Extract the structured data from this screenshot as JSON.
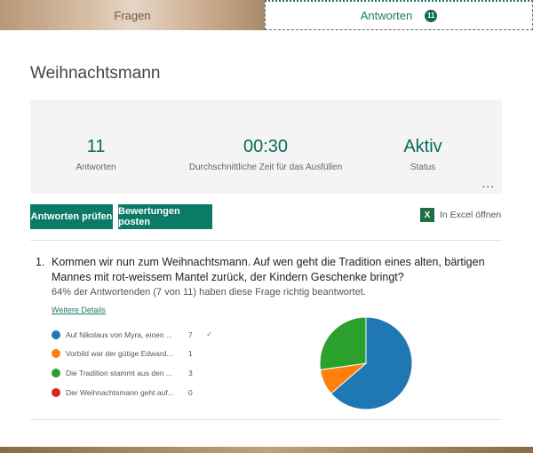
{
  "tabs": {
    "questions": "Fragen",
    "responses": "Antworten",
    "responses_count": "11"
  },
  "form_title": "Weihnachtsmann",
  "stats": [
    {
      "value": "11",
      "label": "Antworten"
    },
    {
      "value": "00:30",
      "label": "Durchschnittliche Zeit für das Ausfüllen"
    },
    {
      "value": "Aktiv",
      "label": "Status"
    }
  ],
  "more_label": "...",
  "buttons": {
    "review": "Antworten prüfen",
    "post_scores": "Bewertungen posten",
    "excel": "In Excel öffnen"
  },
  "question": {
    "number": "1.",
    "text": "Kommen wir nun zum Weihnachtsmann. Auf wen geht die Tradition eines alten, bärtigen Mannes mit rot-weissem Mantel zurück, der Kindern Geschenke bringt?",
    "summary": "64% der Antwortenden (7 von 11) haben diese Frage richtig beantwortet.",
    "details_link": "Weitere Details",
    "options": [
      {
        "label": "Auf Nikolaus von Myra, einen ...",
        "count": "7",
        "color": "#1f77b4",
        "correct": true,
        "check": "✓"
      },
      {
        "label": "Vorbild war der gütige Edward...",
        "count": "1",
        "color": "#ff7f0e",
        "correct": false
      },
      {
        "label": "Die Tradition stammt aus den ...",
        "count": "3",
        "color": "#2ca02c",
        "correct": false
      },
      {
        "label": "Der Weihnachtsmann geht auf...",
        "count": "0",
        "color": "#d62728",
        "correct": false
      }
    ]
  },
  "chart_data": {
    "type": "pie",
    "categories": [
      "Auf Nikolaus von Myra, einen ...",
      "Vorbild war der gütige Edward...",
      "Die Tradition stammt aus den ...",
      "Der Weihnachtsmann geht auf..."
    ],
    "values": [
      7,
      1,
      3,
      0
    ],
    "colors": [
      "#1f77b4",
      "#ff7f0e",
      "#2ca02c",
      "#d62728"
    ]
  }
}
